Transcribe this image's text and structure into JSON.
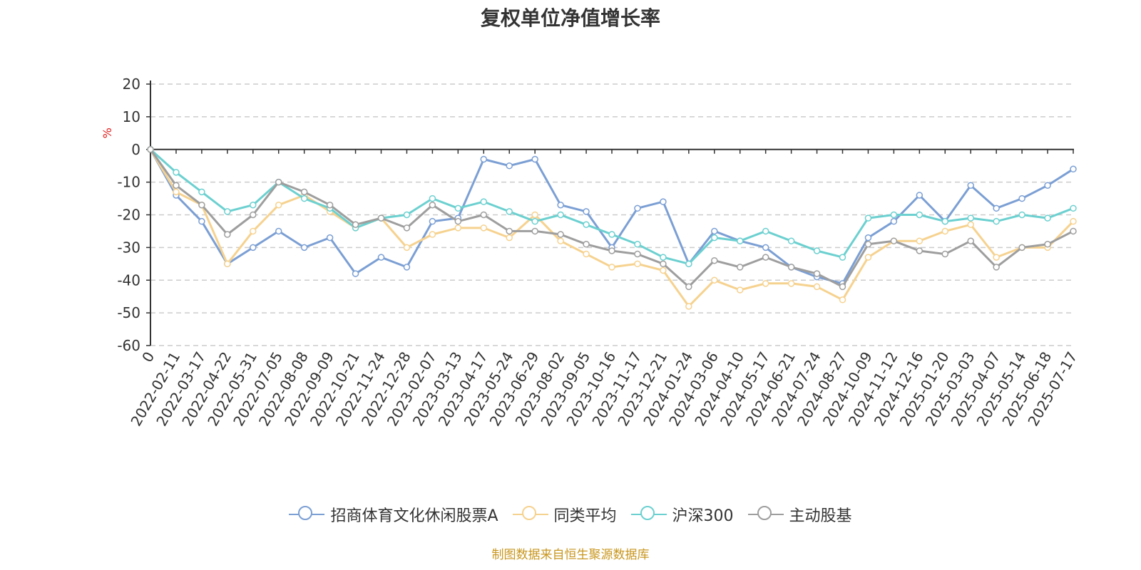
{
  "title": "复权单位净值增长率",
  "source": "制图数据来自恒生聚源数据库",
  "chart_data": {
    "type": "line",
    "title": "复权单位净值增长率",
    "ylabel": "%",
    "ylim": [
      -60,
      20
    ],
    "yticks": [
      20,
      10,
      0,
      -10,
      -20,
      -30,
      -40,
      -50,
      -60
    ],
    "grid": true,
    "legend_position": "bottom",
    "x": [
      "0",
      "2022-02-11",
      "2022-03-17",
      "2022-04-22",
      "2022-05-31",
      "2022-07-05",
      "2022-08-08",
      "2022-09-09",
      "2022-10-21",
      "2022-11-24",
      "2022-12-28",
      "2023-02-07",
      "2023-03-13",
      "2023-04-17",
      "2023-05-24",
      "2023-06-29",
      "2023-08-02",
      "2023-09-05",
      "2023-10-16",
      "2023-11-17",
      "2023-12-21",
      "2024-01-24",
      "2024-03-06",
      "2024-04-10",
      "2024-05-17",
      "2024-06-21",
      "2024-07-24",
      "2024-08-27",
      "2024-10-09",
      "2024-11-12",
      "2024-12-16",
      "2025-01-20",
      "2025-03-03",
      "2025-04-07",
      "2025-05-14",
      "2025-06-18",
      "2025-07-17"
    ],
    "series": [
      {
        "name": "招商体育文化休闲股票A",
        "color": "#7b9fd4",
        "values": [
          0,
          -14,
          -22,
          -35,
          -30,
          -25,
          -30,
          -27,
          -38,
          -33,
          -36,
          -22,
          -21,
          -3,
          -5,
          -3,
          -17,
          -19,
          -30,
          -18,
          -16,
          -35,
          -25,
          -28,
          -30,
          -36,
          -39,
          -41,
          -27,
          -22,
          -14,
          -22,
          -11,
          -18,
          -15,
          -11,
          -6
        ]
      },
      {
        "name": "同类平均",
        "color": "#f6d28f",
        "values": [
          0,
          -13,
          -17,
          -35,
          -25,
          -17,
          -14,
          -19,
          -24,
          -21,
          -30,
          -26,
          -24,
          -24,
          -27,
          -20,
          -28,
          -32,
          -36,
          -35,
          -37,
          -48,
          -40,
          -43,
          -41,
          -41,
          -42,
          -46,
          -33,
          -28,
          -28,
          -25,
          -23,
          -33,
          -30,
          -30,
          -22
        ]
      },
      {
        "name": "沪深300",
        "color": "#6cd0d0",
        "values": [
          0,
          -7,
          -13,
          -19,
          -17,
          -10,
          -15,
          -18,
          -24,
          -21,
          -20,
          -15,
          -18,
          -16,
          -19,
          -22,
          -20,
          -23,
          -26,
          -29,
          -33,
          -35,
          -27,
          -28,
          -25,
          -28,
          -31,
          -33,
          -21,
          -20,
          -20,
          -22,
          -21,
          -22,
          -20,
          -21,
          -18
        ]
      },
      {
        "name": "主动股基",
        "color": "#9e9e9e",
        "values": [
          0,
          -11,
          -17,
          -26,
          -20,
          -10,
          -13,
          -17,
          -23,
          -21,
          -24,
          -17,
          -22,
          -20,
          -25,
          -25,
          -26,
          -29,
          -31,
          -32,
          -35,
          -42,
          -34,
          -36,
          -33,
          -36,
          -38,
          -42,
          -29,
          -28,
          -31,
          -32,
          -28,
          -36,
          -30,
          -29,
          -25
        ]
      }
    ]
  }
}
